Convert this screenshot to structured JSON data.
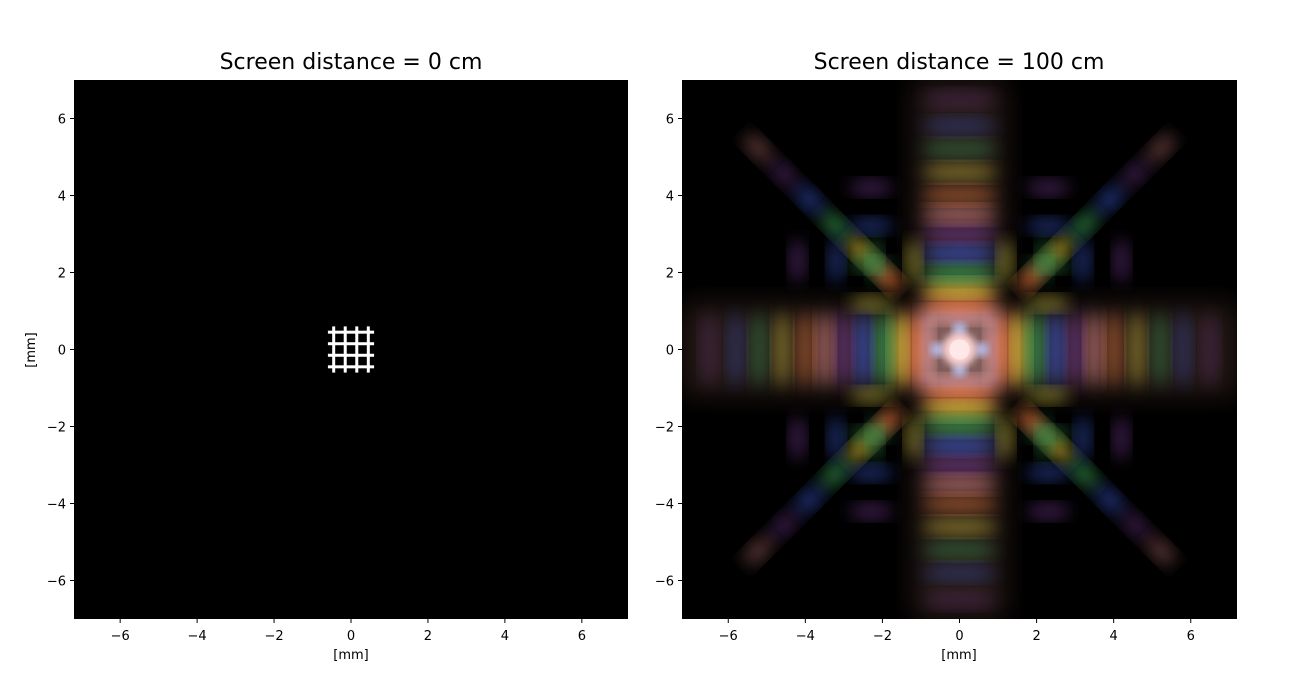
{
  "chart_data": [
    {
      "type": "heatmap",
      "title": "Screen distance = 0 cm",
      "xlabel": "[mm]",
      "ylabel": "[mm]",
      "xlim": [
        -7.2,
        7.2
      ],
      "ylim": [
        -7,
        7
      ],
      "xticks": [
        -6,
        -4,
        -2,
        0,
        2,
        4,
        6
      ],
      "yticks": [
        -6,
        -4,
        -2,
        0,
        2,
        4,
        6
      ],
      "background": "#000000",
      "aperture": {
        "shape": "square grid",
        "extent_mm": [
          -0.6,
          0.6
        ],
        "lines_per_axis": 4,
        "color": "#ffffff"
      }
    },
    {
      "type": "heatmap",
      "title": "Screen distance = 100 cm",
      "xlabel": "[mm]",
      "ylabel": "",
      "xlim": [
        -7.2,
        7.2
      ],
      "ylim": [
        -7,
        7
      ],
      "xticks": [
        -6,
        -4,
        -2,
        0,
        2,
        4,
        6
      ],
      "yticks": [
        -6,
        -4,
        -2,
        0,
        2,
        4,
        6
      ],
      "background": "#000000",
      "pattern": "polychromatic diffraction",
      "fringe_colors": [
        "#ff9a9a",
        "#f08040",
        "#e0d040",
        "#40b060",
        "#4060e0",
        "#8040a0"
      ]
    }
  ]
}
